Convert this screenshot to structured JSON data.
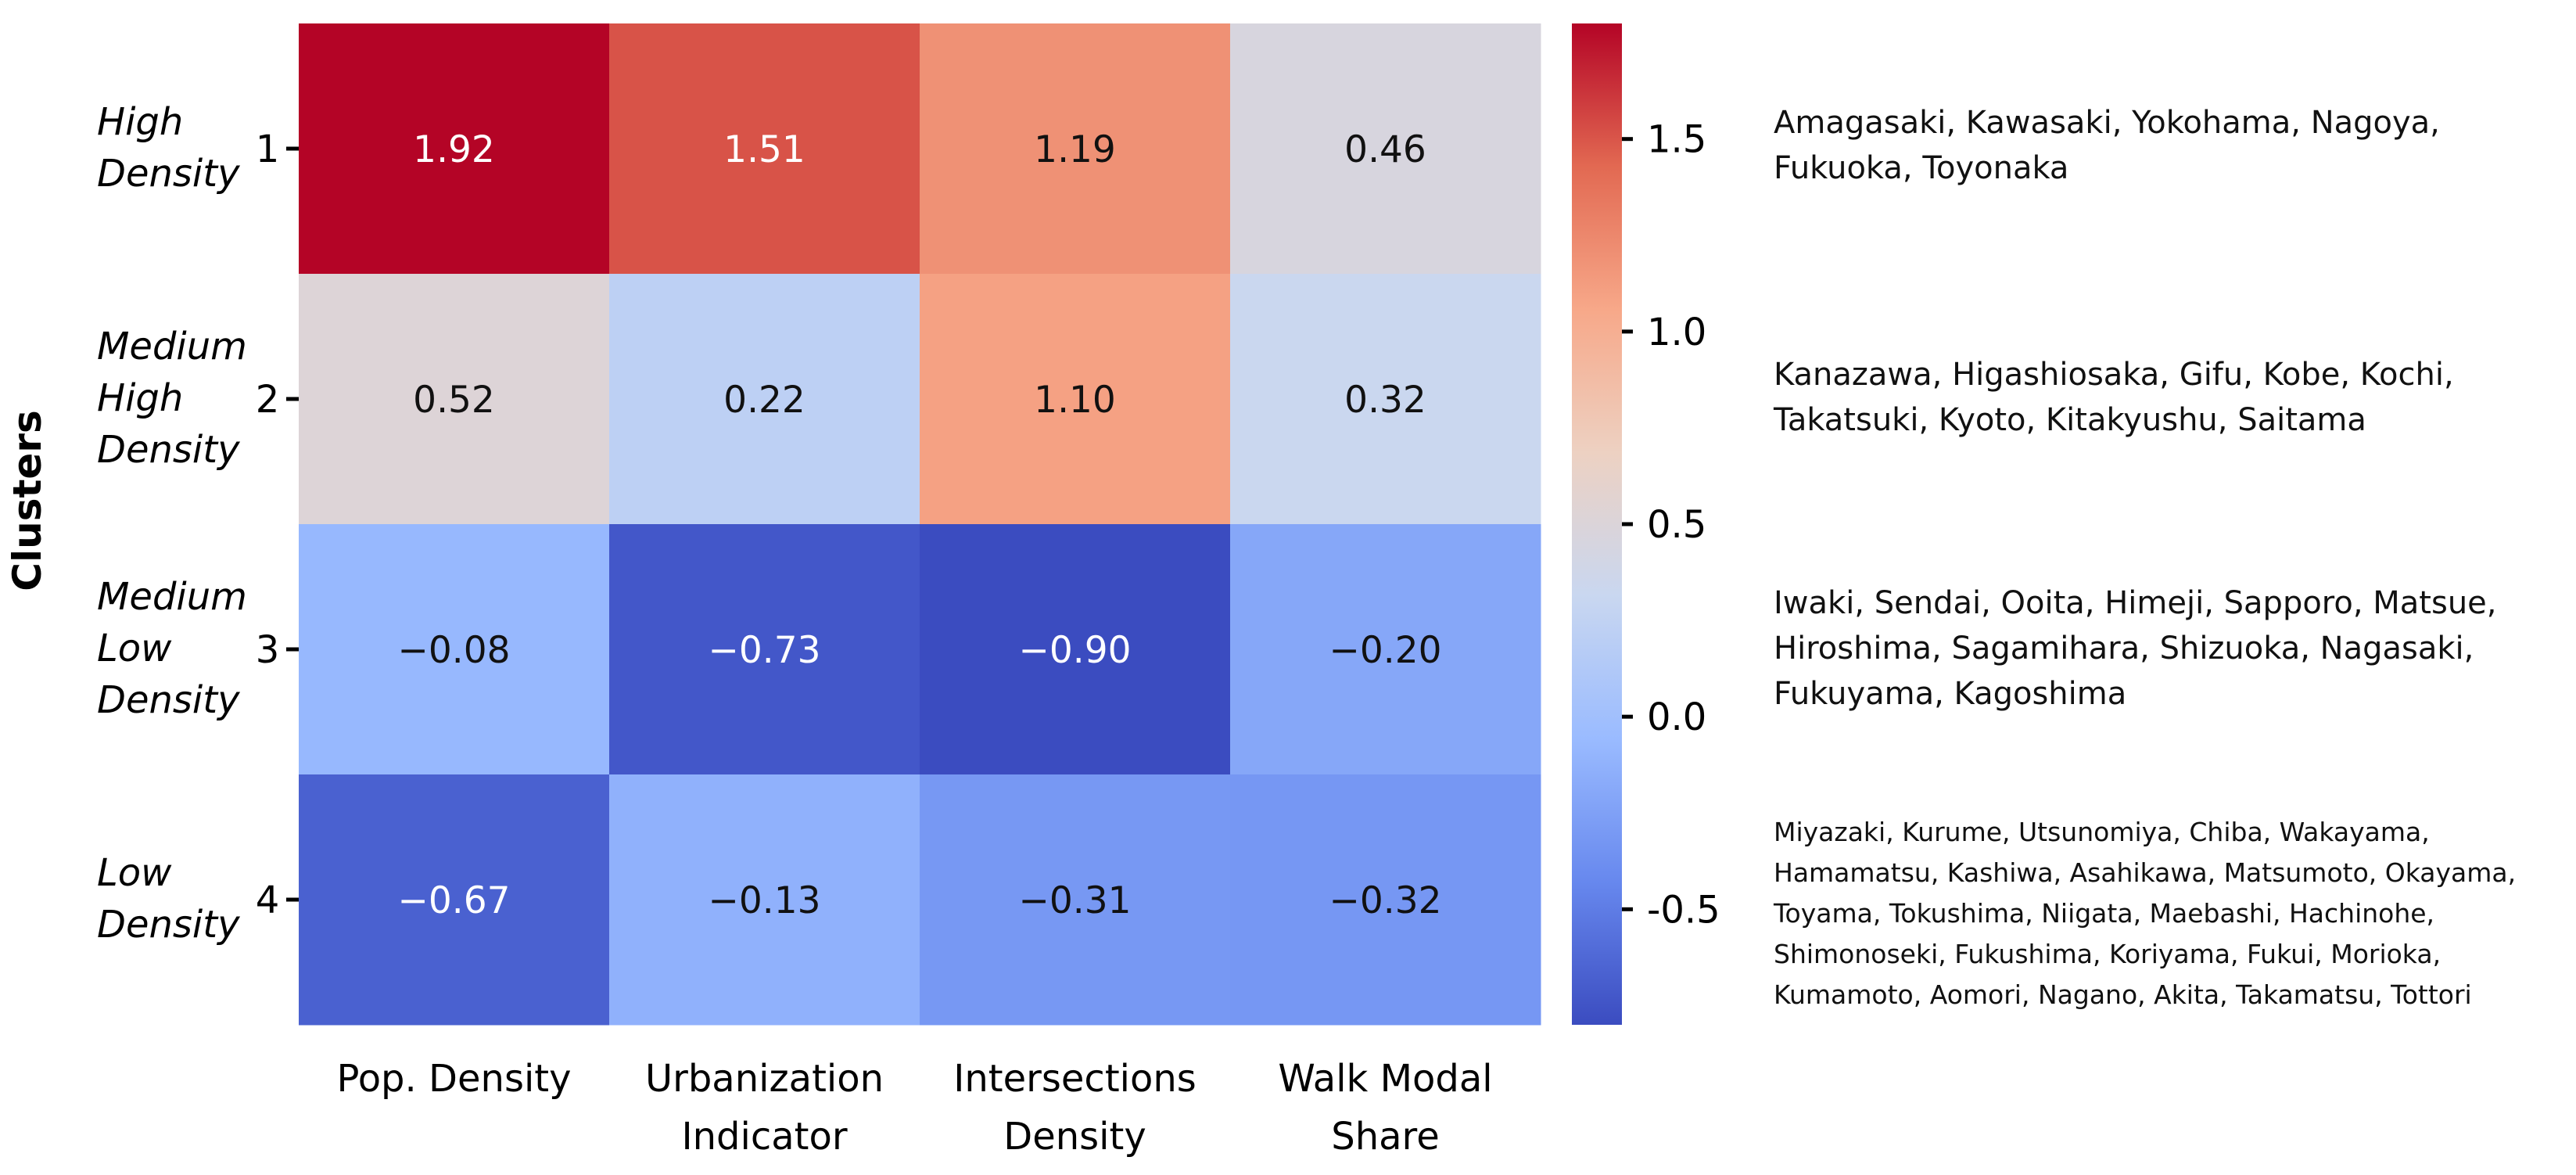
{
  "chart_data": {
    "type": "heatmap",
    "ylabel": "Clusters",
    "columns": [
      "Pop. Density",
      "Urbanization Indicator",
      "Intersections Density",
      "Walk Modal Share"
    ],
    "column_labels": [
      [
        "Pop. Density"
      ],
      [
        "Urbanization",
        "Indicator"
      ],
      [
        "Intersections",
        "Density"
      ],
      [
        "Walk Modal",
        "Share"
      ]
    ],
    "rows": [
      {
        "id": "1",
        "name": [
          "High",
          "Density"
        ],
        "values": [
          1.92,
          1.51,
          1.19,
          0.46
        ],
        "labels": [
          "1.92",
          "1.51",
          "1.19",
          "0.46"
        ]
      },
      {
        "id": "2",
        "name": [
          "Medium",
          "High",
          "Density"
        ],
        "values": [
          0.52,
          0.22,
          1.1,
          0.32
        ],
        "labels": [
          "0.52",
          "0.22",
          "1.10",
          "0.32"
        ]
      },
      {
        "id": "3",
        "name": [
          "Medium",
          "Low",
          "Density"
        ],
        "values": [
          -0.08,
          -0.73,
          -0.9,
          -0.2
        ],
        "labels": [
          "−0.08",
          "−0.73",
          "−0.90",
          "−0.20"
        ]
      },
      {
        "id": "4",
        "name": [
          "Low",
          "Density"
        ],
        "values": [
          -0.67,
          -0.13,
          -0.31,
          -0.32
        ],
        "labels": [
          "−0.67",
          "−0.13",
          "−0.31",
          "−0.32"
        ]
      }
    ],
    "colorbar": {
      "range": [
        -0.8,
        1.8
      ],
      "ticks": [
        1.5,
        1.0,
        0.5,
        0.0,
        -0.5
      ],
      "tick_labels": [
        "1.5",
        "1.0",
        "0.5",
        "0.0",
        "-0.5"
      ],
      "colormap": "coolwarm",
      "colors": [
        "#3b4cc0",
        "#6788ee",
        "#9abbff",
        "#c9d7f0",
        "#edd1c2",
        "#f7a889",
        "#e26952",
        "#b40426"
      ]
    },
    "cluster_cities": [
      "Amagasaki, Kawasaki, Yokohama, Nagoya, Fukuoka, Toyonaka",
      "Kanazawa, Higashiosaka, Gifu, Kobe, Kochi, Takatsuki, Kyoto, Kitakyushu, Saitama",
      "Iwaki, Sendai, Ooita, Himeji, Sapporo, Matsue, Hiroshima, Sagamihara, Shizuoka, Nagasaki, Fukuyama, Kagoshima",
      "Miyazaki, Kurume,  Utsunomiya,  Chiba, Wakayama, Hamamatsu, Kashiwa, Asahikawa, Matsumoto,  Okayama, Toyama, Tokushima, Niigata, Maebashi, Hachinohe, Shimonoseki,  Fukushima,  Koriyama,  Fukui, Morioka, Kumamoto,  Aomori,  Nagano, Akita, Takamatsu, Tottori"
    ]
  }
}
